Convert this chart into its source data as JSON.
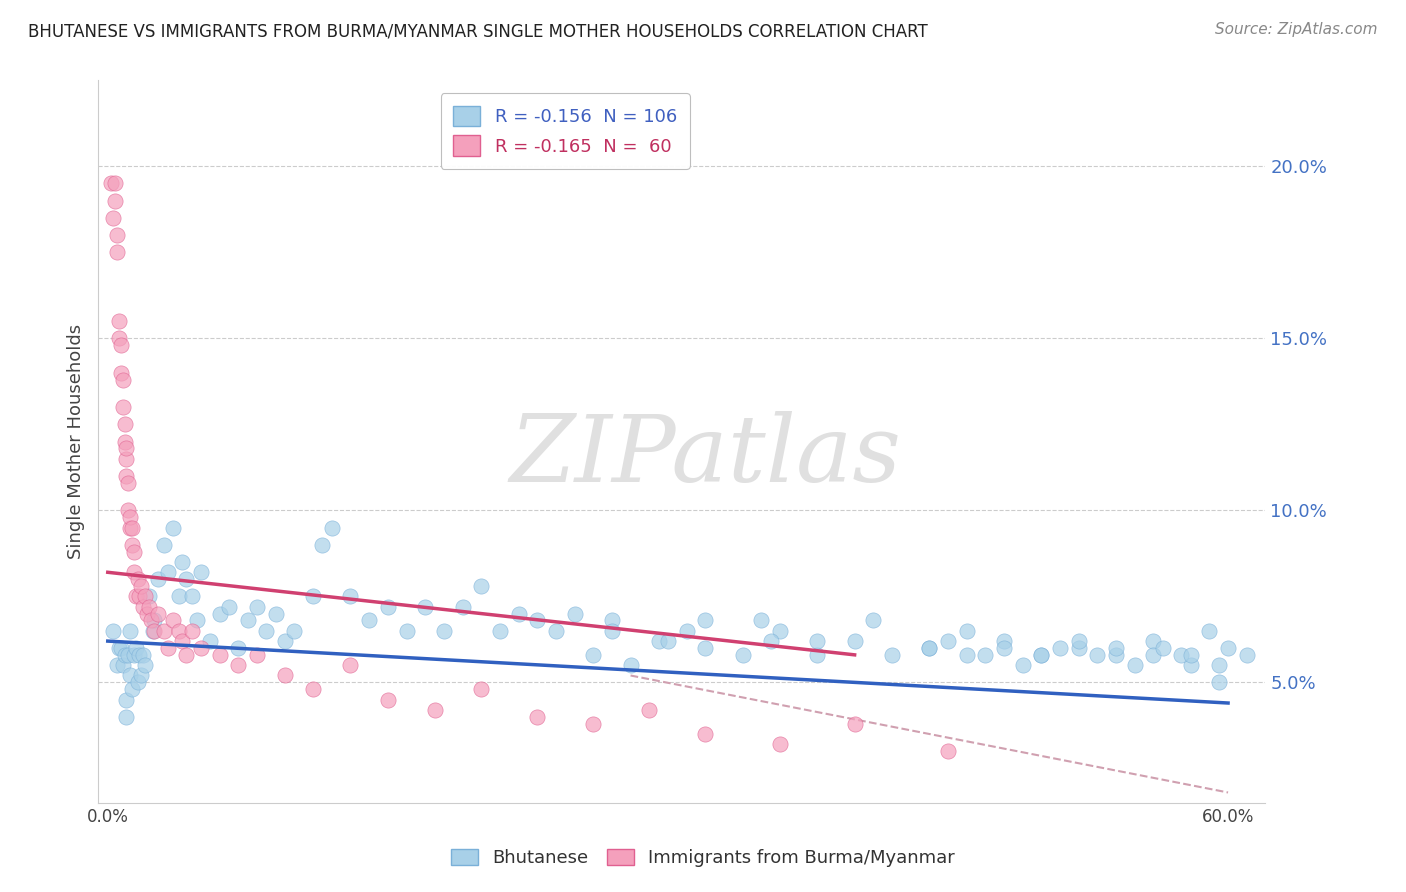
{
  "title": "BHUTANESE VS IMMIGRANTS FROM BURMA/MYANMAR SINGLE MOTHER HOUSEHOLDS CORRELATION CHART",
  "source": "Source: ZipAtlas.com",
  "ylabel": "Single Mother Households",
  "ytick_labels": [
    "5.0%",
    "10.0%",
    "15.0%",
    "20.0%"
  ],
  "ytick_values": [
    0.05,
    0.1,
    0.15,
    0.2
  ],
  "xlim": [
    -0.005,
    0.62
  ],
  "ylim": [
    0.015,
    0.225
  ],
  "bhutanese_color": "#a8d0e8",
  "burma_color": "#f4a0bc",
  "bhutanese_edge": "#7ab0d8",
  "burma_edge": "#e06090",
  "blue_line_color": "#3060c0",
  "pink_line_color": "#d04070",
  "dashed_line_color": "#d0a0b0",
  "watermark_color": "#e0e0e0",
  "bhutanese_x": [
    0.003,
    0.005,
    0.006,
    0.007,
    0.008,
    0.009,
    0.01,
    0.01,
    0.011,
    0.012,
    0.012,
    0.013,
    0.014,
    0.015,
    0.016,
    0.017,
    0.018,
    0.019,
    0.02,
    0.022,
    0.024,
    0.025,
    0.027,
    0.03,
    0.032,
    0.035,
    0.038,
    0.04,
    0.042,
    0.045,
    0.048,
    0.05,
    0.055,
    0.06,
    0.065,
    0.07,
    0.075,
    0.08,
    0.085,
    0.09,
    0.095,
    0.1,
    0.11,
    0.115,
    0.12,
    0.13,
    0.14,
    0.15,
    0.16,
    0.17,
    0.18,
    0.19,
    0.2,
    0.21,
    0.22,
    0.23,
    0.24,
    0.25,
    0.26,
    0.27,
    0.28,
    0.295,
    0.31,
    0.32,
    0.34,
    0.36,
    0.38,
    0.4,
    0.42,
    0.44,
    0.46,
    0.48,
    0.5,
    0.52,
    0.54,
    0.56,
    0.58,
    0.595,
    0.355,
    0.27,
    0.3,
    0.32,
    0.35,
    0.38,
    0.41,
    0.44,
    0.46,
    0.48,
    0.5,
    0.52,
    0.54,
    0.56,
    0.575,
    0.59,
    0.6,
    0.45,
    0.47,
    0.49,
    0.51,
    0.53,
    0.55,
    0.565,
    0.58,
    0.595,
    0.61
  ],
  "bhutanese_y": [
    0.065,
    0.055,
    0.06,
    0.06,
    0.055,
    0.058,
    0.04,
    0.045,
    0.058,
    0.052,
    0.065,
    0.048,
    0.058,
    0.06,
    0.05,
    0.058,
    0.052,
    0.058,
    0.055,
    0.075,
    0.065,
    0.068,
    0.08,
    0.09,
    0.082,
    0.095,
    0.075,
    0.085,
    0.08,
    0.075,
    0.068,
    0.082,
    0.062,
    0.07,
    0.072,
    0.06,
    0.068,
    0.072,
    0.065,
    0.07,
    0.062,
    0.065,
    0.075,
    0.09,
    0.095,
    0.075,
    0.068,
    0.072,
    0.065,
    0.072,
    0.065,
    0.072,
    0.078,
    0.065,
    0.07,
    0.068,
    0.065,
    0.07,
    0.058,
    0.068,
    0.055,
    0.062,
    0.065,
    0.06,
    0.058,
    0.065,
    0.058,
    0.062,
    0.058,
    0.06,
    0.058,
    0.062,
    0.058,
    0.06,
    0.058,
    0.062,
    0.055,
    0.05,
    0.062,
    0.065,
    0.062,
    0.068,
    0.068,
    0.062,
    0.068,
    0.06,
    0.065,
    0.06,
    0.058,
    0.062,
    0.06,
    0.058,
    0.058,
    0.065,
    0.06,
    0.062,
    0.058,
    0.055,
    0.06,
    0.058,
    0.055,
    0.06,
    0.058,
    0.055,
    0.058
  ],
  "burma_x": [
    0.002,
    0.003,
    0.004,
    0.004,
    0.005,
    0.005,
    0.006,
    0.006,
    0.007,
    0.007,
    0.008,
    0.008,
    0.009,
    0.009,
    0.01,
    0.01,
    0.01,
    0.011,
    0.011,
    0.012,
    0.012,
    0.013,
    0.013,
    0.014,
    0.014,
    0.015,
    0.016,
    0.017,
    0.018,
    0.019,
    0.02,
    0.021,
    0.022,
    0.023,
    0.025,
    0.027,
    0.03,
    0.032,
    0.035,
    0.038,
    0.04,
    0.042,
    0.045,
    0.05,
    0.06,
    0.07,
    0.08,
    0.095,
    0.11,
    0.13,
    0.15,
    0.175,
    0.2,
    0.23,
    0.26,
    0.29,
    0.32,
    0.36,
    0.4,
    0.45
  ],
  "burma_y": [
    0.195,
    0.185,
    0.19,
    0.195,
    0.175,
    0.18,
    0.15,
    0.155,
    0.14,
    0.148,
    0.13,
    0.138,
    0.12,
    0.125,
    0.11,
    0.115,
    0.118,
    0.1,
    0.108,
    0.095,
    0.098,
    0.09,
    0.095,
    0.082,
    0.088,
    0.075,
    0.08,
    0.075,
    0.078,
    0.072,
    0.075,
    0.07,
    0.072,
    0.068,
    0.065,
    0.07,
    0.065,
    0.06,
    0.068,
    0.065,
    0.062,
    0.058,
    0.065,
    0.06,
    0.058,
    0.055,
    0.058,
    0.052,
    0.048,
    0.055,
    0.045,
    0.042,
    0.048,
    0.04,
    0.038,
    0.042,
    0.035,
    0.032,
    0.038,
    0.03
  ],
  "blue_trend_x": [
    0.0,
    0.6
  ],
  "blue_trend_y": [
    0.062,
    0.044
  ],
  "pink_trend_x": [
    0.0,
    0.4
  ],
  "pink_trend_y": [
    0.082,
    0.058
  ],
  "dashed_trend_x": [
    0.28,
    0.6
  ],
  "dashed_trend_y": [
    0.052,
    0.018
  ]
}
